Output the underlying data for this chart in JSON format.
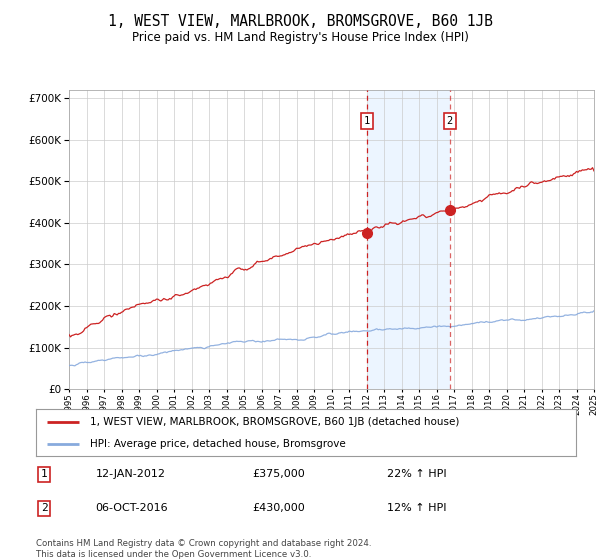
{
  "title": "1, WEST VIEW, MARLBROOK, BROMSGROVE, B60 1JB",
  "subtitle": "Price paid vs. HM Land Registry's House Price Index (HPI)",
  "legend_line1": "1, WEST VIEW, MARLBROOK, BROMSGROVE, B60 1JB (detached house)",
  "legend_line2": "HPI: Average price, detached house, Bromsgrove",
  "transaction1_date": "12-JAN-2012",
  "transaction1_price": "£375,000",
  "transaction1_hpi": "22% ↑ HPI",
  "transaction2_date": "06-OCT-2016",
  "transaction2_price": "£430,000",
  "transaction2_hpi": "12% ↑ HPI",
  "footer": "Contains HM Land Registry data © Crown copyright and database right 2024.\nThis data is licensed under the Open Government Licence v3.0.",
  "background_color": "#ffffff",
  "plot_bg_color": "#ffffff",
  "grid_color": "#cccccc",
  "hpi_line_color": "#88aadd",
  "price_line_color": "#cc2222",
  "shade_color": "#ddeeff",
  "vline_color": "#cc2222",
  "ylim": [
    0,
    720000
  ],
  "yticks": [
    0,
    100000,
    200000,
    300000,
    400000,
    500000,
    600000,
    700000
  ],
  "ytick_labels": [
    "£0",
    "£100K",
    "£200K",
    "£300K",
    "£400K",
    "£500K",
    "£600K",
    "£700K"
  ],
  "transaction1_year": 2012.04,
  "transaction2_year": 2016.76,
  "transaction1_price_val": 375000,
  "transaction2_price_val": 430000
}
